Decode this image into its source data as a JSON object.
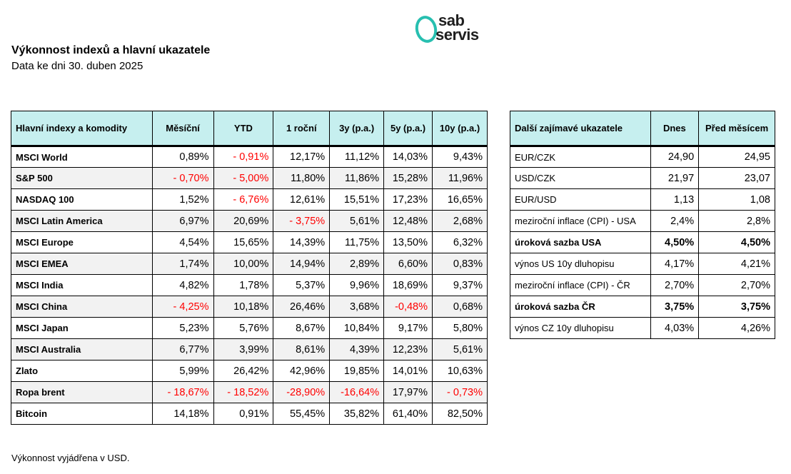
{
  "header": {
    "title": "Výkonnost indexů a hlavní ukazatele",
    "subtitle": "Data ke dni 30. duben 2025"
  },
  "logo": {
    "line1": "sab",
    "line2": "servis",
    "accent_color": "#27bfb0"
  },
  "indices_table": {
    "columns": [
      "Hlavní indexy a komodity",
      "Měsíční",
      "YTD",
      "1 roční",
      "3y (p.a.)",
      "5y (p.a.)",
      "10y (p.a.)"
    ],
    "rows": [
      {
        "name": "MSCI World",
        "values": [
          "0,89%",
          "- 0,91%",
          "12,17%",
          "11,12%",
          "14,03%",
          "9,43%"
        ]
      },
      {
        "name": "S&P 500",
        "values": [
          "- 0,70%",
          "- 5,00%",
          "11,80%",
          "11,86%",
          "15,28%",
          "11,96%"
        ]
      },
      {
        "name": "NASDAQ 100",
        "values": [
          "1,52%",
          "- 6,76%",
          "12,61%",
          "15,51%",
          "17,23%",
          "16,65%"
        ]
      },
      {
        "name": "MSCI Latin America",
        "values": [
          "6,97%",
          "20,69%",
          "- 3,75%",
          "5,61%",
          "12,48%",
          "2,68%"
        ]
      },
      {
        "name": "MSCI Europe",
        "values": [
          "4,54%",
          "15,65%",
          "14,39%",
          "11,75%",
          "13,50%",
          "6,32%"
        ]
      },
      {
        "name": "MSCI EMEA",
        "values": [
          "1,74%",
          "10,00%",
          "14,94%",
          "2,89%",
          "6,60%",
          "0,83%"
        ]
      },
      {
        "name": "MSCI India",
        "values": [
          "4,82%",
          "1,78%",
          "5,37%",
          "9,96%",
          "18,69%",
          "9,37%"
        ]
      },
      {
        "name": "MSCI China",
        "values": [
          "- 4,25%",
          "10,18%",
          "26,46%",
          "3,68%",
          "-0,48%",
          "0,68%"
        ]
      },
      {
        "name": "MSCI Japan",
        "values": [
          "5,23%",
          "5,76%",
          "8,67%",
          "10,84%",
          "9,17%",
          "5,80%"
        ]
      },
      {
        "name": "MSCI Australia",
        "values": [
          "6,77%",
          "3,99%",
          "8,61%",
          "4,39%",
          "12,23%",
          "5,61%"
        ]
      },
      {
        "name": "Zlato",
        "values": [
          "5,99%",
          "26,42%",
          "42,96%",
          "19,85%",
          "14,01%",
          "10,63%"
        ]
      },
      {
        "name": "Ropa brent",
        "values": [
          "- 18,67%",
          "- 18,52%",
          "-28,90%",
          "-16,64%",
          "17,97%",
          "- 0,73%"
        ]
      },
      {
        "name": "Bitcoin",
        "values": [
          "14,18%",
          "0,91%",
          "55,45%",
          "35,82%",
          "61,40%",
          "82,50%"
        ]
      }
    ]
  },
  "indicators_table": {
    "columns": [
      "Další zajímavé ukazatele",
      "Dnes",
      "Před měsícem"
    ],
    "rows": [
      {
        "name": "EUR/CZK",
        "values": [
          "24,90",
          "24,95"
        ]
      },
      {
        "name": "USD/CZK",
        "values": [
          "21,97",
          "23,07"
        ]
      },
      {
        "name": "EUR/USD",
        "values": [
          "1,13",
          "1,08"
        ]
      },
      {
        "name": "meziroční inflace (CPI) - USA",
        "values": [
          "2,4%",
          "2,8%"
        ]
      },
      {
        "name": "úroková sazba USA",
        "values": [
          "4,50%",
          "4,50%"
        ],
        "bold": true
      },
      {
        "name": "výnos US 10y dluhopisu",
        "values": [
          "4,17%",
          "4,21%"
        ]
      },
      {
        "name": "meziroční inflace (CPI) - ČR",
        "values": [
          "2,70%",
          "2,70%"
        ]
      },
      {
        "name": "úroková sazba ČR",
        "values": [
          "3,75%",
          "3,75%"
        ],
        "bold": true
      },
      {
        "name": "výnos CZ 10y dluhopisu",
        "values": [
          "4,03%",
          "4,26%"
        ]
      }
    ]
  },
  "footer": {
    "note": "Výkonnost vyjádřena v USD."
  },
  "colors": {
    "header_bg": "#c6efef",
    "negative": "#ff0000",
    "alt_row": "#f2f2f2"
  }
}
